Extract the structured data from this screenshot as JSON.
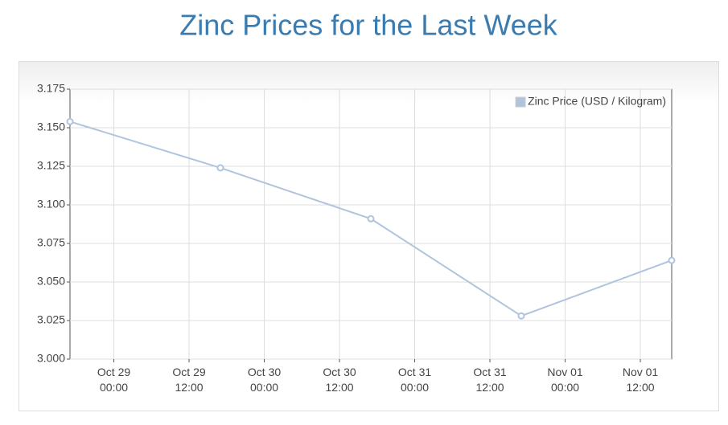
{
  "chart_data": {
    "type": "line",
    "title": "Zinc Prices for the Last Week",
    "x": [
      "Oct 28 17:00",
      "Oct 29 17:00",
      "Oct 30 17:00",
      "Oct 31 17:00",
      "Nov 01 17:00"
    ],
    "series": [
      {
        "name": "Zinc Price (USD / Kilogram)",
        "color": "#b0c4de",
        "values": [
          3.154,
          3.124,
          3.091,
          3.028,
          3.064
        ]
      }
    ],
    "xlim": [
      "Oct 28 17:00",
      "Nov 01 17:00"
    ],
    "xticks": [
      "Oct 29 00:00",
      "Oct 29 12:00",
      "Oct 30 00:00",
      "Oct 30 12:00",
      "Oct 31 00:00",
      "Oct 31 12:00",
      "Nov 01 00:00",
      "Nov 01 12:00"
    ],
    "ylim": [
      3.0,
      3.175
    ],
    "yticks": [
      {
        "value": 3.0,
        "label": "3.000"
      },
      3.025,
      {
        "value": 3.05,
        "label": "3.050"
      },
      3.075,
      {
        "value": 3.1,
        "label": "3.100"
      },
      3.125,
      {
        "value": 3.15,
        "label": "3.150"
      },
      3.175
    ],
    "grid": true,
    "legend": "top-right"
  }
}
